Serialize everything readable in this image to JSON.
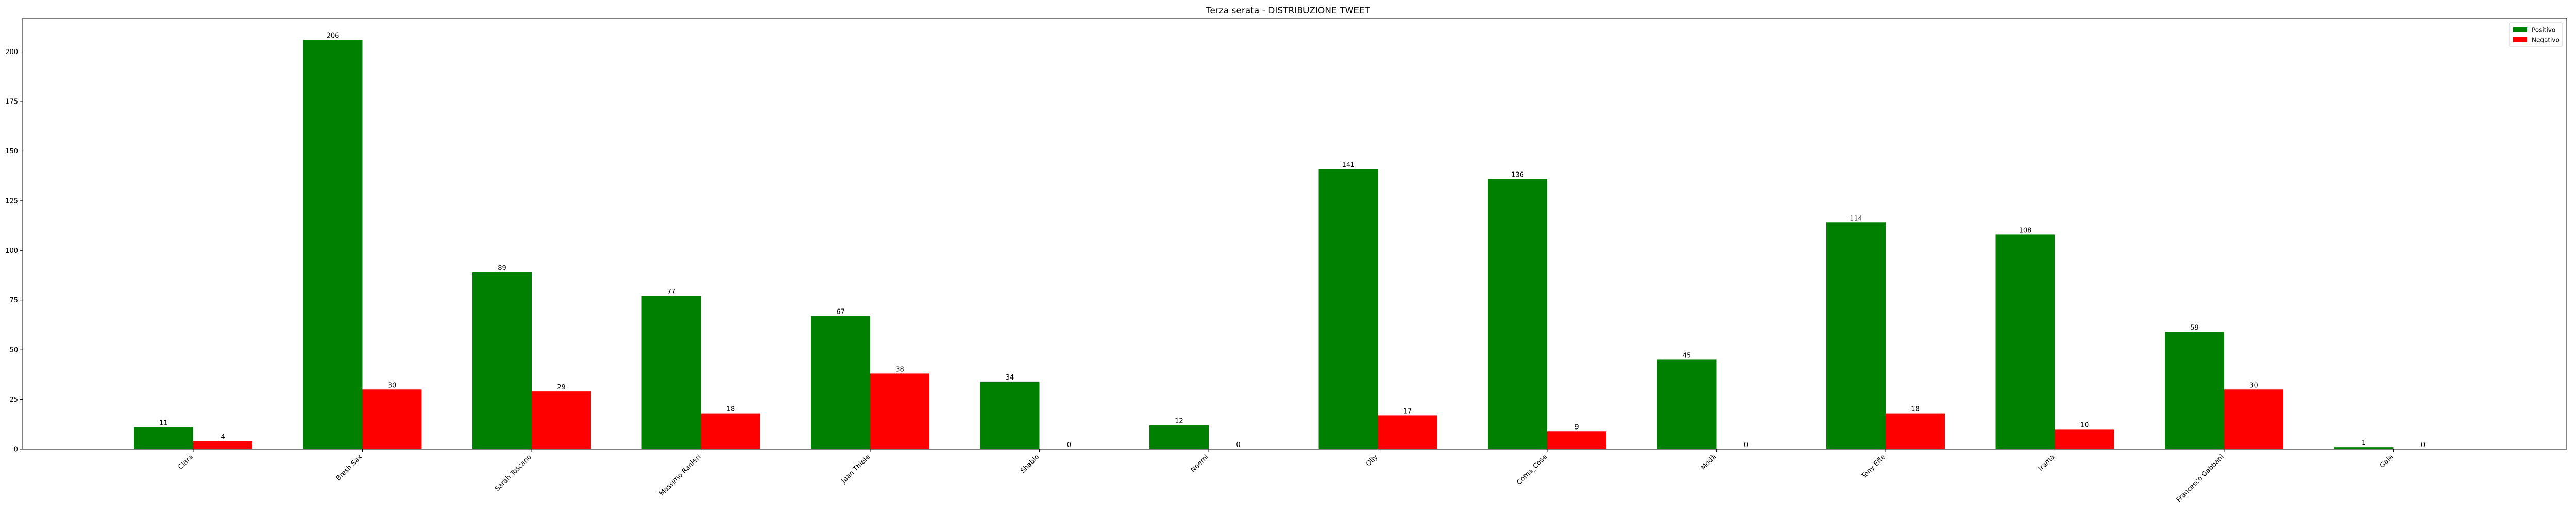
{
  "chart_data": {
    "type": "bar",
    "title": "Terza serata - DISTRIBUZIONE TWEET",
    "xlabel": "",
    "ylabel": "",
    "categories": [
      "Clara",
      "Bresh Sax",
      "Sarah Toscano",
      "Massimo Ranieri",
      "Joan Thiele",
      "Shablo",
      "Noemi",
      "Olly",
      "Coma_Cose",
      "Modà",
      "Tony Effe",
      "Irama",
      "Francesco Gabbani",
      "Gaia"
    ],
    "series": [
      {
        "name": "Positivo",
        "color": "#008000",
        "values": [
          11,
          206,
          89,
          77,
          67,
          34,
          12,
          141,
          136,
          45,
          114,
          108,
          59,
          1
        ]
      },
      {
        "name": "Negativo",
        "color": "#ff0000",
        "values": [
          4,
          30,
          29,
          18,
          38,
          0,
          0,
          17,
          9,
          0,
          18,
          10,
          30,
          0
        ]
      }
    ],
    "ylim": [
      0,
      217
    ],
    "yticks": [
      0,
      25,
      50,
      75,
      100,
      125,
      150,
      175,
      200
    ],
    "grid": false,
    "legend_position": "top-right"
  }
}
